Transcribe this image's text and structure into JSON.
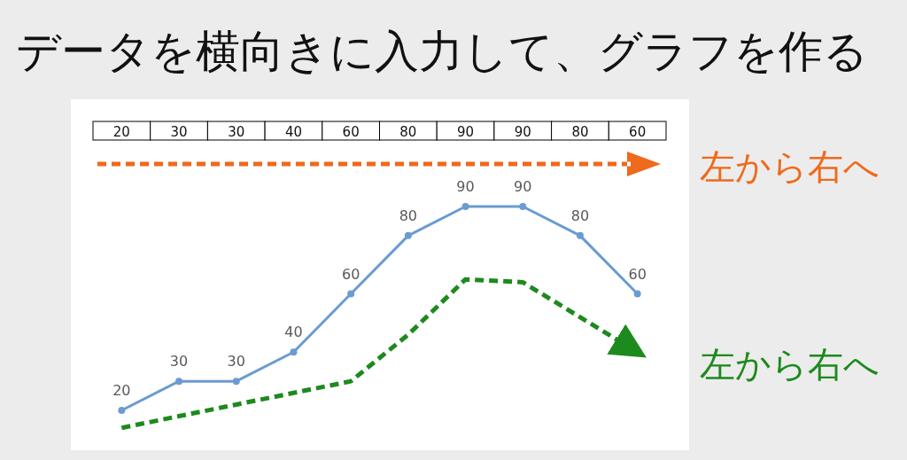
{
  "chart_data": {
    "type": "line",
    "title": "データを横向きに入力して、グラフを作る",
    "categories": [
      "20",
      "30",
      "30",
      "40",
      "60",
      "80",
      "90",
      "90",
      "80",
      "60"
    ],
    "series": [
      {
        "color": "#6a9bd1",
        "marker": "circle",
        "values": [
          20,
          30,
          30,
          40,
          60,
          80,
          90,
          90,
          80,
          60
        ],
        "value_labels": [
          "20",
          "30",
          "30",
          "40",
          "60",
          "80",
          "90",
          "90",
          "80",
          "60"
        ]
      },
      {
        "type": "line",
        "color": "#1d8a1d",
        "marker": "none",
        "line_style": "dashed",
        "values": [
          14,
          18,
          22,
          26,
          30,
          46,
          65,
          64,
          52,
          40
        ]
      }
    ],
    "annotations": [
      "左から右へ",
      "左から右へ"
    ]
  }
}
